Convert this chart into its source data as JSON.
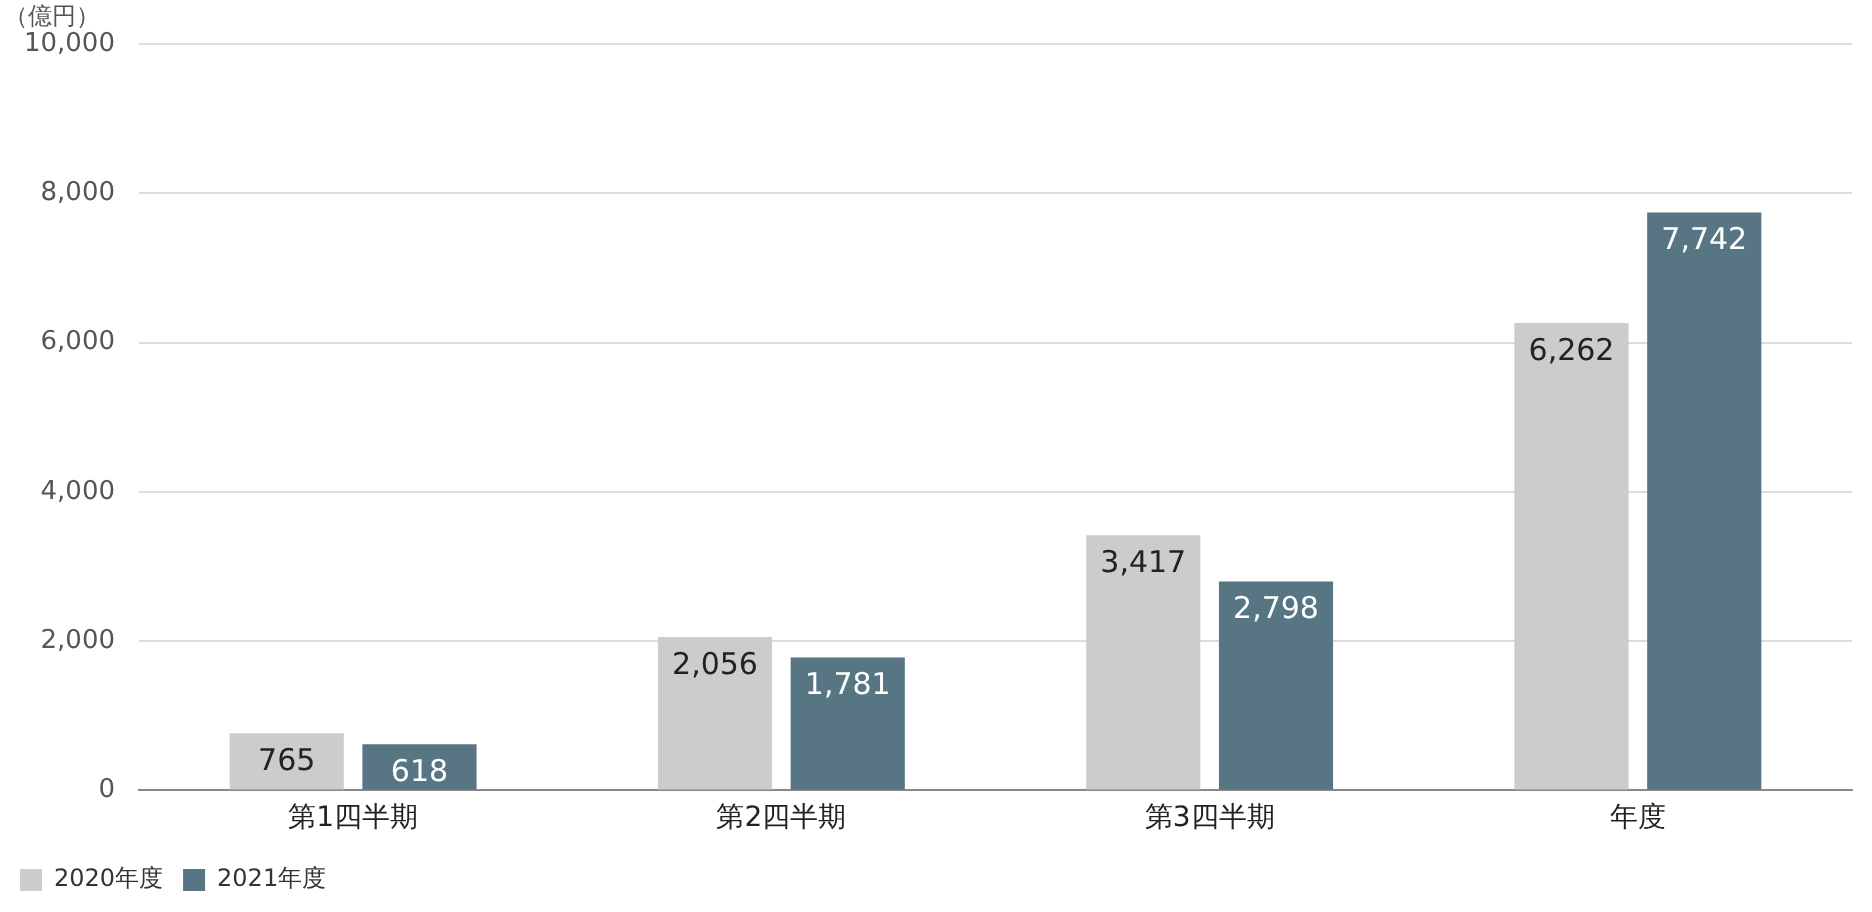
{
  "chart_data": {
    "type": "bar",
    "ylabel": "（億円）",
    "categories": [
      "第1四半期",
      "第2四半期",
      "第3四半期",
      "年度"
    ],
    "series": [
      {
        "name": "2020年度",
        "color": "#cccccc",
        "values": [
          765,
          2056,
          3417,
          6262
        ],
        "value_labels": [
          "765",
          "2,056",
          "3,417",
          "6,262"
        ]
      },
      {
        "name": "2021年度",
        "color": "#577582",
        "values": [
          618,
          1781,
          2798,
          7742
        ],
        "value_labels": [
          "618",
          "1,781",
          "2,798",
          "7,742"
        ]
      }
    ],
    "ylim": [
      0,
      10000
    ],
    "yticks": [
      {
        "value": 0,
        "label": "0"
      },
      {
        "value": 2000,
        "label": "2,000"
      },
      {
        "value": 4000,
        "label": "4,000"
      },
      {
        "value": 6000,
        "label": "6,000"
      },
      {
        "value": 8000,
        "label": "8,000"
      },
      {
        "value": 10000,
        "label": "10,000"
      }
    ],
    "grid": "y",
    "legend": "bottom left"
  }
}
